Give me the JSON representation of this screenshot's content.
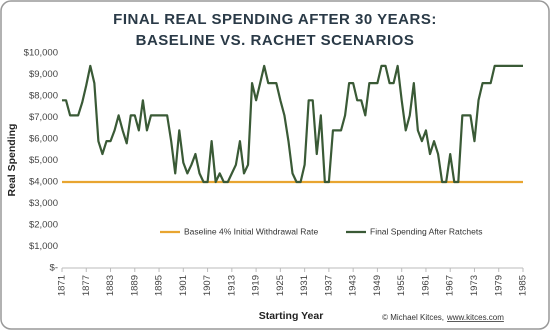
{
  "chart_data": {
    "type": "line",
    "title": [
      "FINAL REAL SPENDING AFTER 30 YEARS:",
      "BASELINE VS. RACHET SCENARIOS"
    ],
    "y_label": "Real Spending",
    "x_label": "Starting Year",
    "credit": "© Michael Kitces,",
    "credit_link": "www.kitces.com",
    "x": [
      1871,
      1872,
      1873,
      1874,
      1875,
      1876,
      1877,
      1878,
      1879,
      1880,
      1881,
      1882,
      1883,
      1884,
      1885,
      1886,
      1887,
      1888,
      1889,
      1890,
      1891,
      1892,
      1893,
      1894,
      1895,
      1896,
      1897,
      1898,
      1899,
      1900,
      1901,
      1902,
      1903,
      1904,
      1905,
      1906,
      1907,
      1908,
      1909,
      1910,
      1911,
      1912,
      1913,
      1914,
      1915,
      1916,
      1917,
      1918,
      1919,
      1920,
      1921,
      1922,
      1923,
      1924,
      1925,
      1926,
      1927,
      1928,
      1929,
      1930,
      1931,
      1932,
      1933,
      1934,
      1935,
      1936,
      1937,
      1938,
      1939,
      1940,
      1941,
      1942,
      1943,
      1944,
      1945,
      1946,
      1947,
      1948,
      1949,
      1950,
      1951,
      1952,
      1953,
      1954,
      1955,
      1956,
      1957,
      1958,
      1959,
      1960,
      1961,
      1962,
      1963,
      1964,
      1965,
      1966,
      1967,
      1968,
      1969,
      1970,
      1971,
      1972,
      1973,
      1974,
      1975,
      1976,
      1977,
      1978,
      1979,
      1980,
      1981,
      1982,
      1983,
      1984,
      1985
    ],
    "xlim": [
      1871,
      1985
    ],
    "xticks": [
      1871,
      1877,
      1883,
      1889,
      1895,
      1901,
      1907,
      1913,
      1919,
      1925,
      1931,
      1937,
      1943,
      1949,
      1955,
      1961,
      1967,
      1973,
      1979,
      1985
    ],
    "ylim": [
      0,
      10000
    ],
    "yticks": [
      {
        "value": 0,
        "label": "$-"
      },
      {
        "value": 1000,
        "label": "$1,000"
      },
      {
        "value": 2000,
        "label": "$2,000"
      },
      {
        "value": 3000,
        "label": "$3,000"
      },
      {
        "value": 4000,
        "label": "$4,000"
      },
      {
        "value": 5000,
        "label": "$5,000"
      },
      {
        "value": 6000,
        "label": "$6,000"
      },
      {
        "value": 7000,
        "label": "$7,000"
      },
      {
        "value": 8000,
        "label": "$8,000"
      },
      {
        "value": 9000,
        "label": "$9,000"
      },
      {
        "value": 10000,
        "label": "$10,000"
      }
    ],
    "legend": "bottom",
    "series": [
      {
        "name": "Baseline 4% Initial Withdrawal Rate",
        "color": "#e8a530",
        "values": [
          4000,
          4000,
          4000,
          4000,
          4000,
          4000,
          4000,
          4000,
          4000,
          4000,
          4000,
          4000,
          4000,
          4000,
          4000,
          4000,
          4000,
          4000,
          4000,
          4000,
          4000,
          4000,
          4000,
          4000,
          4000,
          4000,
          4000,
          4000,
          4000,
          4000,
          4000,
          4000,
          4000,
          4000,
          4000,
          4000,
          4000,
          4000,
          4000,
          4000,
          4000,
          4000,
          4000,
          4000,
          4000,
          4000,
          4000,
          4000,
          4000,
          4000,
          4000,
          4000,
          4000,
          4000,
          4000,
          4000,
          4000,
          4000,
          4000,
          4000,
          4000,
          4000,
          4000,
          4000,
          4000,
          4000,
          4000,
          4000,
          4000,
          4000,
          4000,
          4000,
          4000,
          4000,
          4000,
          4000,
          4000,
          4000,
          4000,
          4000,
          4000,
          4000,
          4000,
          4000,
          4000,
          4000,
          4000,
          4000,
          4000,
          4000,
          4000,
          4000,
          4000,
          4000,
          4000,
          4000,
          4000,
          4000,
          4000,
          4000,
          4000,
          4000,
          4000,
          4000,
          4000,
          4000,
          4000,
          4000,
          4000,
          4000,
          4000,
          4000,
          4000,
          4000,
          4000
        ]
      },
      {
        "name": "Final Spending After Ratchets",
        "color": "#3a5a36",
        "values": [
          7800,
          7800,
          7100,
          7100,
          7100,
          7700,
          8500,
          9400,
          8600,
          5900,
          5300,
          5900,
          5900,
          6400,
          7100,
          6400,
          5800,
          7100,
          7100,
          6400,
          7800,
          6400,
          7100,
          7100,
          7100,
          7100,
          7100,
          5900,
          4400,
          6400,
          4900,
          4400,
          4800,
          5300,
          4400,
          4000,
          4000,
          5900,
          4000,
          4400,
          4000,
          4000,
          4400,
          4800,
          5900,
          4400,
          4800,
          8600,
          7800,
          8600,
          9400,
          8600,
          8600,
          8600,
          7800,
          7100,
          5900,
          4400,
          4000,
          4000,
          4800,
          7800,
          7800,
          5300,
          7100,
          4000,
          4000,
          6400,
          6400,
          6400,
          7100,
          8600,
          8600,
          7800,
          7800,
          7100,
          8600,
          8600,
          8600,
          9400,
          9400,
          8600,
          8600,
          9400,
          7800,
          6400,
          7100,
          8600,
          6400,
          5900,
          6400,
          5300,
          5900,
          5300,
          4000,
          4000,
          5300,
          4000,
          4000,
          7100,
          7100,
          7100,
          5900,
          7800,
          8600,
          8600,
          8600,
          9400,
          9400,
          9400,
          9400,
          9400,
          9400,
          9400,
          9400
        ]
      }
    ]
  }
}
